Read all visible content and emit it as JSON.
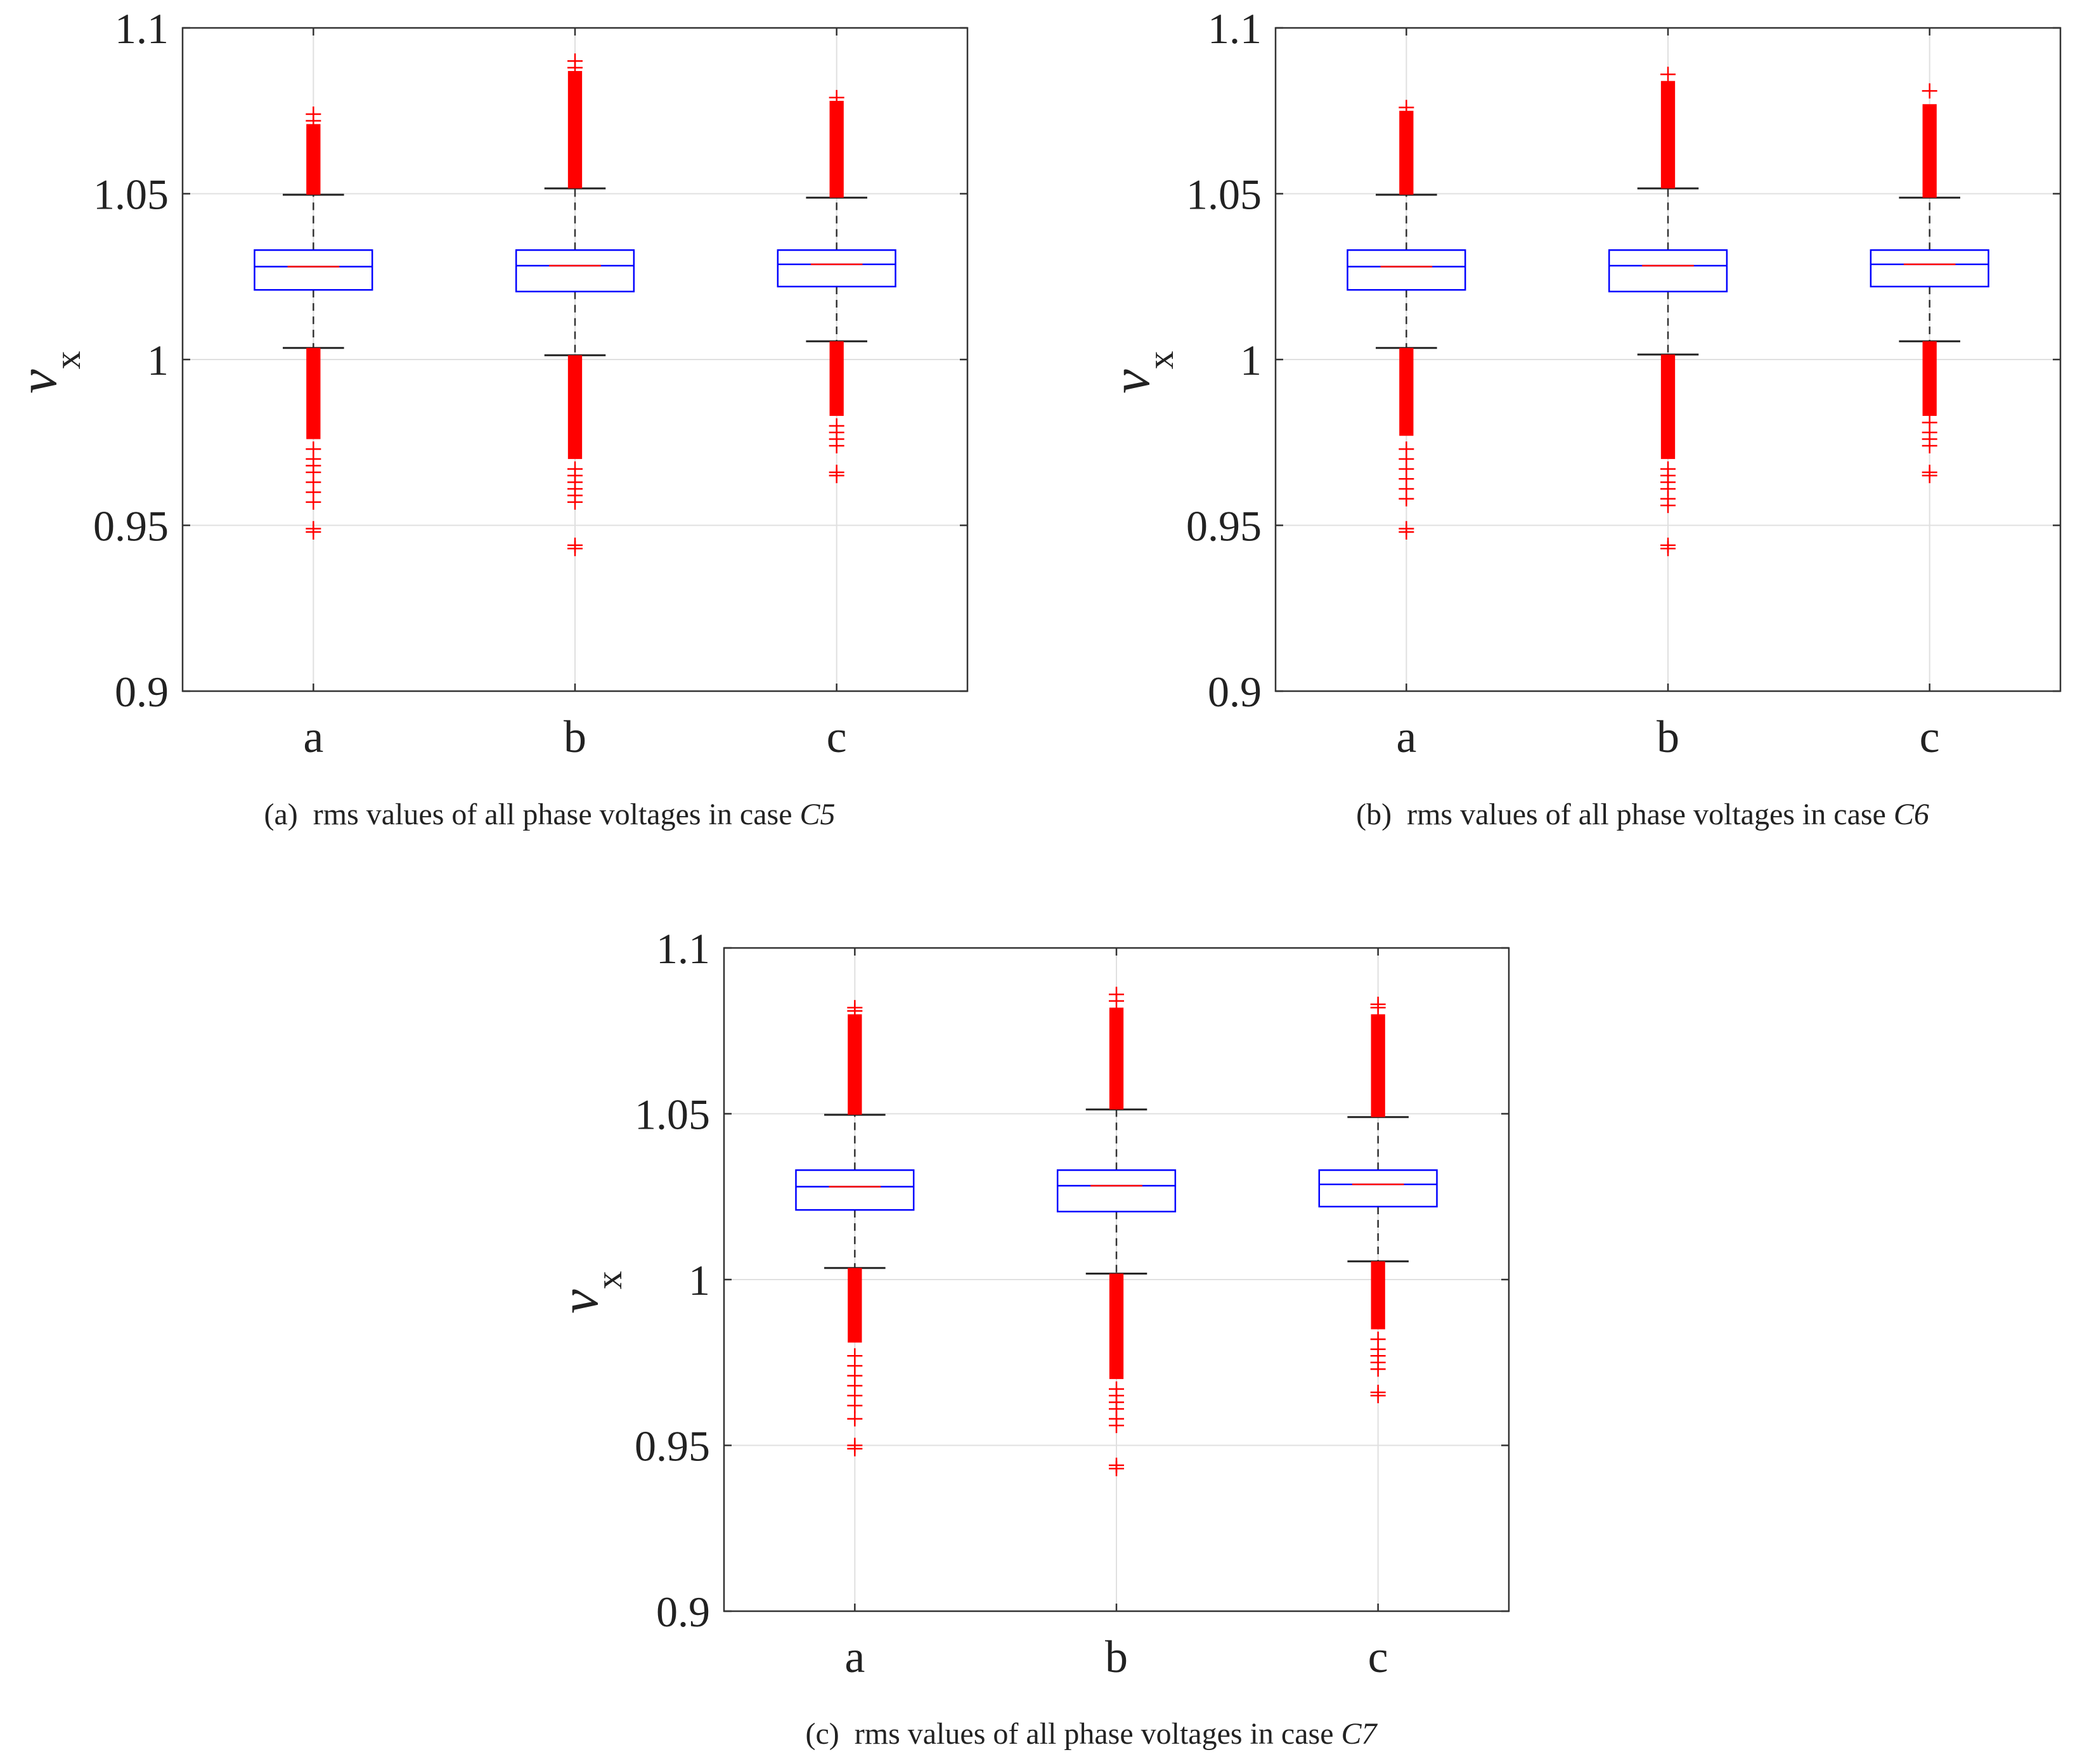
{
  "chart_data": [
    {
      "type": "box",
      "caption": {
        "prefix": "(a)",
        "text": "rms values of all phase voltages in case",
        "case": "C5"
      },
      "ylabel": {
        "main": "v",
        "sub": "x"
      },
      "ylim": [
        0.9,
        1.1
      ],
      "yticks": [
        {
          "v": 0.9,
          "label": "0.9"
        },
        {
          "v": 0.95,
          "label": "0.95"
        },
        {
          "v": 1.0,
          "label": "1"
        },
        {
          "v": 1.05,
          "label": "1.05"
        },
        {
          "v": 1.1,
          "label": "1.1"
        }
      ],
      "categories": [
        "a",
        "b",
        "c"
      ],
      "grid": true,
      "boxes": [
        {
          "q1": 1.021,
          "median": 1.028,
          "q3": 1.033,
          "whisker_low": 1.0035,
          "whisker_high": 1.0497,
          "out_high_top": 1.071,
          "out_high_extra": [
            1.072,
            1.074
          ],
          "out_low_dense": 0.976,
          "out_low_extra": [
            0.973,
            0.97,
            0.968,
            0.966,
            0.963,
            0.96,
            0.957,
            0.949,
            0.948
          ]
        },
        {
          "q1": 1.0205,
          "median": 1.0283,
          "q3": 1.033,
          "whisker_low": 1.0013,
          "whisker_high": 1.0516,
          "out_high_top": 1.087,
          "out_high_extra": [
            1.088,
            1.09
          ],
          "out_low_dense": 0.97,
          "out_low_extra": [
            0.967,
            0.965,
            0.963,
            0.961,
            0.959,
            0.957,
            0.944,
            0.943
          ]
        },
        {
          "q1": 1.022,
          "median": 1.0287,
          "q3": 1.033,
          "whisker_low": 1.0055,
          "whisker_high": 1.0488,
          "out_high_top": 1.078,
          "out_high_extra": [
            1.079
          ],
          "out_low_dense": 0.983,
          "out_low_extra": [
            0.98,
            0.978,
            0.976,
            0.974,
            0.966,
            0.965
          ]
        }
      ]
    },
    {
      "type": "box",
      "caption": {
        "prefix": "(b)",
        "text": "rms values of all phase voltages in case",
        "case": "C6"
      },
      "ylabel": {
        "main": "v",
        "sub": "x"
      },
      "ylim": [
        0.9,
        1.1
      ],
      "yticks": [
        {
          "v": 0.9,
          "label": "0.9"
        },
        {
          "v": 0.95,
          "label": "0.95"
        },
        {
          "v": 1.0,
          "label": "1"
        },
        {
          "v": 1.05,
          "label": "1.05"
        },
        {
          "v": 1.1,
          "label": "1.1"
        }
      ],
      "categories": [
        "a",
        "b",
        "c"
      ],
      "grid": true,
      "boxes": [
        {
          "q1": 1.021,
          "median": 1.028,
          "q3": 1.033,
          "whisker_low": 1.0035,
          "whisker_high": 1.0497,
          "out_high_top": 1.075,
          "out_high_extra": [
            1.076
          ],
          "out_low_dense": 0.977,
          "out_low_extra": [
            0.973,
            0.97,
            0.967,
            0.964,
            0.961,
            0.958,
            0.949,
            0.948
          ]
        },
        {
          "q1": 1.0205,
          "median": 1.0283,
          "q3": 1.033,
          "whisker_low": 1.0015,
          "whisker_high": 1.0516,
          "out_high_top": 1.084,
          "out_high_extra": [
            1.086
          ],
          "out_low_dense": 0.97,
          "out_low_extra": [
            0.967,
            0.965,
            0.963,
            0.961,
            0.958,
            0.956,
            0.944,
            0.943
          ]
        },
        {
          "q1": 1.022,
          "median": 1.0287,
          "q3": 1.033,
          "whisker_low": 1.0055,
          "whisker_high": 1.0488,
          "out_high_top": 1.077,
          "out_high_extra": [
            1.081
          ],
          "out_low_dense": 0.983,
          "out_low_extra": [
            0.981,
            0.978,
            0.976,
            0.974,
            0.966,
            0.965
          ]
        }
      ]
    },
    {
      "type": "box",
      "caption": {
        "prefix": "(c)",
        "text": "rms values of all phase voltages in case",
        "case": "C7"
      },
      "ylabel": {
        "main": "v",
        "sub": "x"
      },
      "ylim": [
        0.9,
        1.1
      ],
      "yticks": [
        {
          "v": 0.9,
          "label": "0.9"
        },
        {
          "v": 0.95,
          "label": "0.95"
        },
        {
          "v": 1.0,
          "label": "1"
        },
        {
          "v": 1.05,
          "label": "1.05"
        },
        {
          "v": 1.1,
          "label": "1.1"
        }
      ],
      "categories": [
        "a",
        "b",
        "c"
      ],
      "grid": true,
      "boxes": [
        {
          "q1": 1.021,
          "median": 1.028,
          "q3": 1.033,
          "whisker_low": 1.0035,
          "whisker_high": 1.0497,
          "out_high_top": 1.08,
          "out_high_extra": [
            1.081,
            1.082
          ],
          "out_low_dense": 0.981,
          "out_low_extra": [
            0.977,
            0.974,
            0.971,
            0.968,
            0.965,
            0.962,
            0.958,
            0.95,
            0.949
          ]
        },
        {
          "q1": 1.0205,
          "median": 1.0283,
          "q3": 1.033,
          "whisker_low": 1.0018,
          "whisker_high": 1.0513,
          "out_high_top": 1.082,
          "out_high_extra": [
            1.084,
            1.086
          ],
          "out_low_dense": 0.97,
          "out_low_extra": [
            0.967,
            0.965,
            0.963,
            0.961,
            0.958,
            0.956,
            0.944,
            0.943
          ]
        },
        {
          "q1": 1.022,
          "median": 1.0287,
          "q3": 1.033,
          "whisker_low": 1.0055,
          "whisker_high": 1.049,
          "out_high_top": 1.08,
          "out_high_extra": [
            1.082,
            1.083
          ],
          "out_low_dense": 0.985,
          "out_low_extra": [
            0.982,
            0.979,
            0.977,
            0.975,
            0.973,
            0.966,
            0.965
          ]
        }
      ]
    }
  ]
}
